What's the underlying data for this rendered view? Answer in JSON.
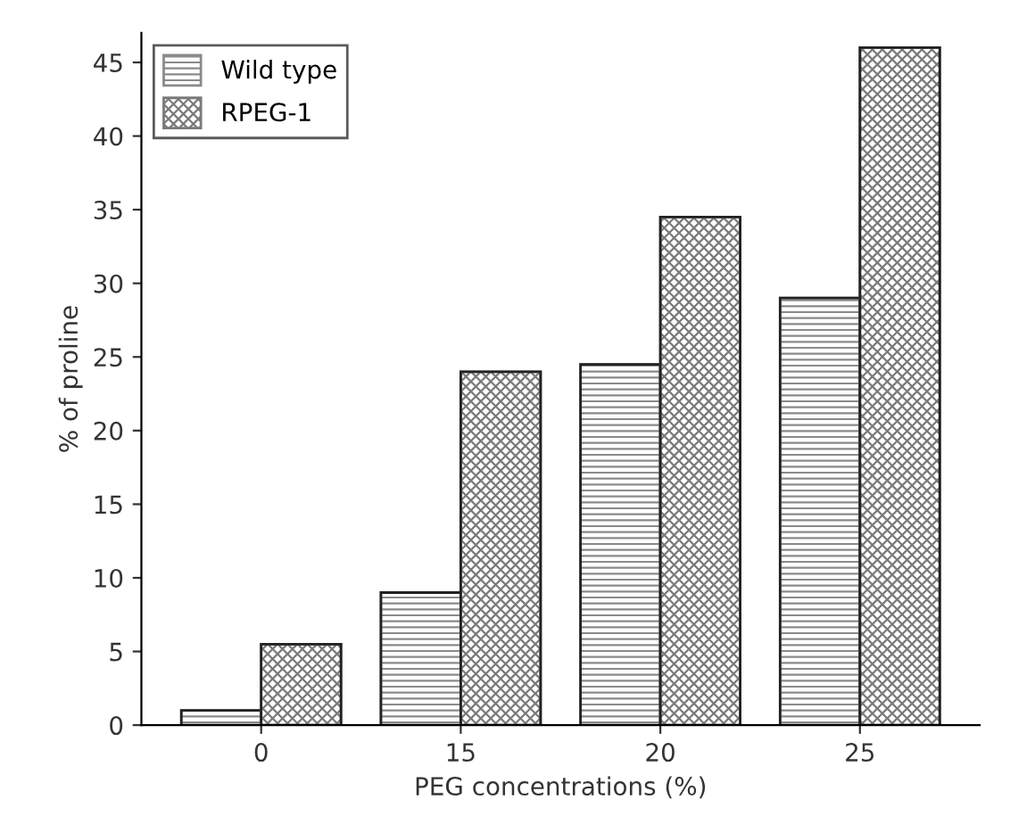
{
  "chart_data": {
    "type": "bar",
    "xlabel": "PEG concentrations (%)",
    "ylabel": "% of proline",
    "categories": [
      "0",
      "15",
      "20",
      "25"
    ],
    "series": [
      {
        "name": "Wild type",
        "color": "#8a8a8a",
        "values": [
          1,
          9,
          24.5,
          29
        ]
      },
      {
        "name": "RPEG-1",
        "color": "#7a7a7a",
        "values": [
          5.5,
          24,
          34.5,
          46
        ]
      }
    ],
    "ylim": [
      0,
      47
    ],
    "yticks": [
      0,
      5,
      10,
      15,
      20,
      25,
      30,
      35,
      40,
      45
    ],
    "grid": false,
    "legend": "top left"
  }
}
